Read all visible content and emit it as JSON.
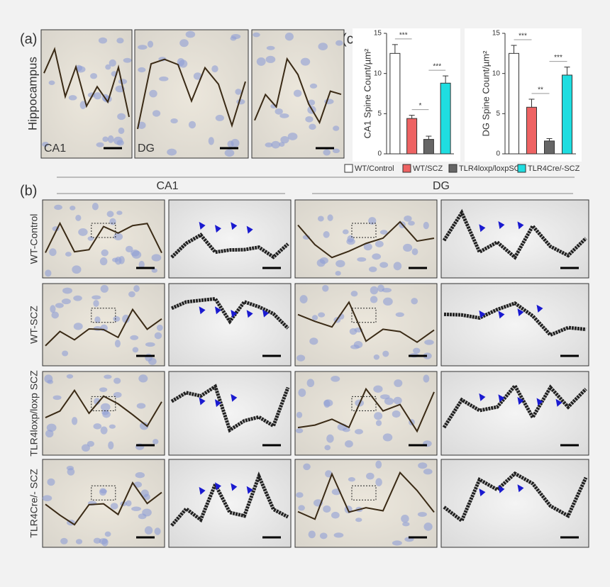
{
  "panels": {
    "a": "(a)",
    "b": "(b)",
    "c": "(c)"
  },
  "panel_a": {
    "side_label": "Hippocampus",
    "image_labels": [
      "CA1",
      "DG"
    ]
  },
  "panel_b": {
    "column_groups": [
      "CA1",
      "DG"
    ],
    "row_labels": [
      "WT-Control",
      "WT-SCZ",
      "TLR4loxp/loxp SCZ",
      "TLR4Cre/- SCZ"
    ]
  },
  "legend": {
    "entries": [
      "WT/Control",
      "WT/SCZ",
      "TLR4loxp/loxpSCZ",
      "TLR4Cre/-SCZ"
    ],
    "colors": [
      "#ffffff",
      "#ee6363",
      "#666666",
      "#1fdde0"
    ]
  },
  "chart_data": [
    {
      "type": "bar",
      "ylabel": "CA1 Spine Count/µm²",
      "values": [
        12.5,
        4.4,
        1.8,
        8.8
      ],
      "errors": [
        1.1,
        0.4,
        0.4,
        0.9
      ],
      "ylim": [
        0,
        15
      ],
      "yticks": [
        0,
        5,
        10,
        15
      ],
      "annotations": [
        "***",
        "*",
        "***"
      ]
    },
    {
      "type": "bar",
      "ylabel": "DG Spine Count/µm²",
      "values": [
        12.5,
        5.8,
        1.6,
        9.8
      ],
      "errors": [
        1.0,
        1.0,
        0.3,
        1.0
      ],
      "ylim": [
        0,
        15
      ],
      "yticks": [
        0,
        5,
        10,
        15
      ],
      "annotations": [
        "***",
        "**",
        "***"
      ]
    }
  ]
}
